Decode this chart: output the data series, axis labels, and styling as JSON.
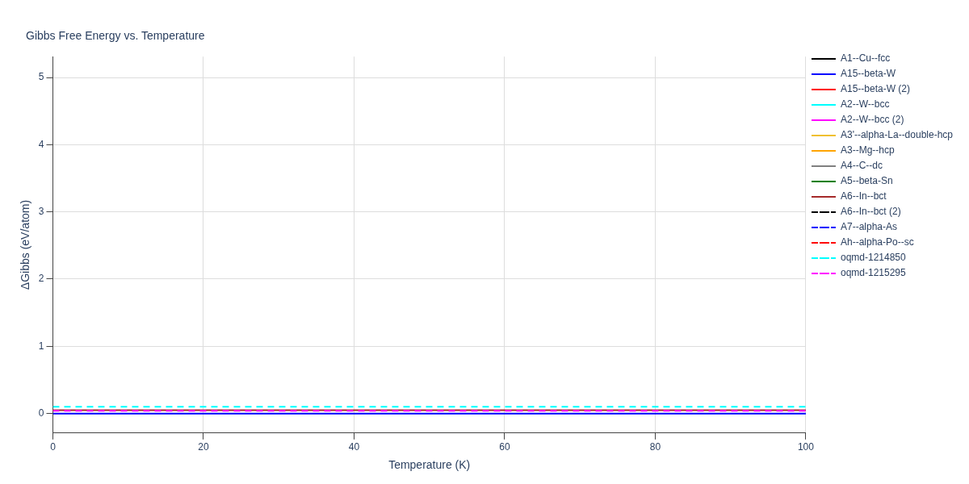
{
  "chart_data": {
    "type": "line",
    "title": "Gibbs Free Energy vs. Temperature",
    "xlabel": "Temperature (K)",
    "ylabel": "ΔGibbs (eV/atom)",
    "x": [
      0,
      100
    ],
    "xlim": [
      0,
      100
    ],
    "xticks": [
      0,
      20,
      40,
      60,
      80,
      100
    ],
    "ylim": [
      -0.29,
      5.31
    ],
    "yticks": [
      0,
      1,
      2,
      3,
      4,
      5
    ],
    "grid": true,
    "legend": "right",
    "marker": "none",
    "series": [
      {
        "name": "A1--Cu--fcc",
        "color": "#000000",
        "values": [
          null,
          null
        ]
      },
      {
        "name": "A15--beta-W",
        "color": "#0000ff",
        "values": [
          0,
          0
        ]
      },
      {
        "name": "A15--beta-W (2)",
        "color": "#ff0000",
        "values": [
          null,
          null
        ]
      },
      {
        "name": "A2--W--bcc",
        "color": "#00ffff",
        "values": [
          null,
          null
        ]
      },
      {
        "name": "A2--W--bcc (2)",
        "color": "#ff00ff",
        "values": [
          null,
          null
        ]
      },
      {
        "name": "A3'--alpha-La--double-hcp",
        "color": "#f0c030",
        "values": [
          null,
          null
        ]
      },
      {
        "name": "A3--Mg--hcp",
        "color": "#ffa500",
        "values": [
          null,
          null
        ]
      },
      {
        "name": "A4--C--dc",
        "color": "#808080",
        "values": [
          null,
          null
        ]
      },
      {
        "name": "A5--beta-Sn",
        "color": "#008000",
        "values": [
          null,
          null
        ]
      },
      {
        "name": "A6--In--bct",
        "color": "#a52a2a",
        "values": [
          0.05,
          0.05
        ]
      },
      {
        "name": "A6--In--bct (2)",
        "color": "#000000",
        "line_style": "dashed",
        "values": [
          null,
          null
        ]
      },
      {
        "name": "A7--alpha-As",
        "color": "#0000ff",
        "line_style": "dashed",
        "values": [
          null,
          null
        ]
      },
      {
        "name": "Ah--alpha-Po--sc",
        "color": "#ff0000",
        "line_style": "dashed",
        "values": [
          null,
          null
        ]
      },
      {
        "name": "oqmd-1214850",
        "color": "#00ffff",
        "line_style": "dashed",
        "values": [
          0.1,
          0.1
        ]
      },
      {
        "name": "oqmd-1215295",
        "color": "#ff00ff",
        "line_style": "dashed",
        "values": [
          0.04,
          0.04
        ]
      }
    ]
  }
}
